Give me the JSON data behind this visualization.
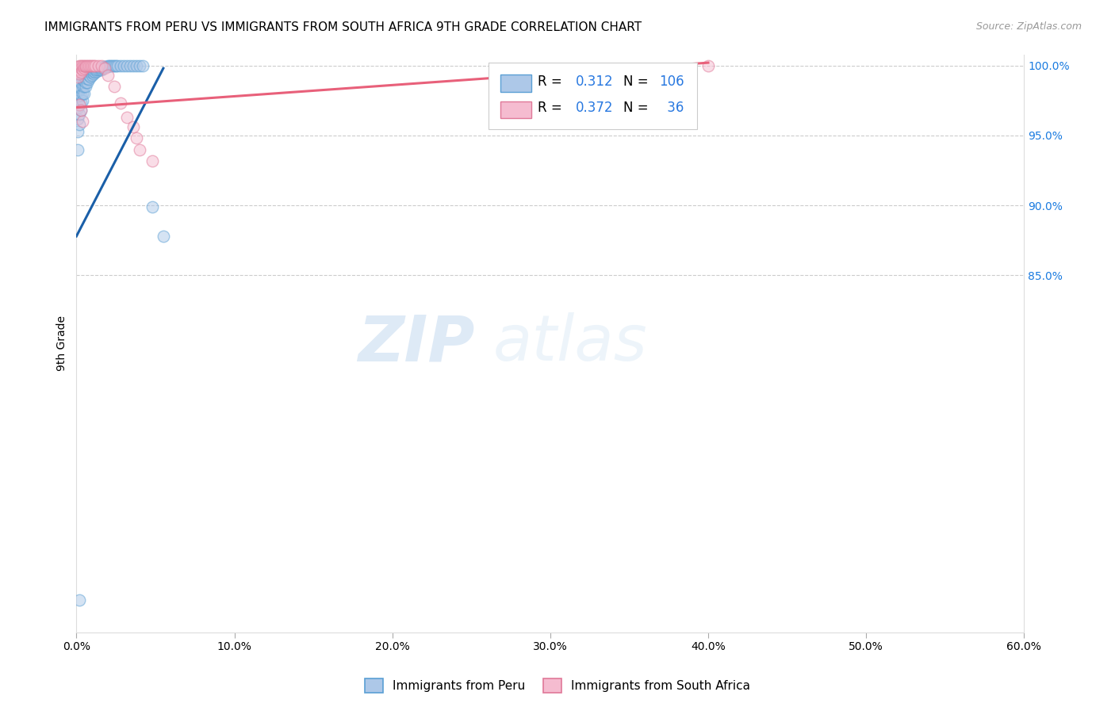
{
  "title": "IMMIGRANTS FROM PERU VS IMMIGRANTS FROM SOUTH AFRICA 9TH GRADE CORRELATION CHART",
  "source": "Source: ZipAtlas.com",
  "ylabel_left": "9th Grade",
  "xmin": 0.0,
  "xmax": 0.6,
  "ymin": 0.595,
  "ymax": 1.008,
  "right_yticks": [
    1.0,
    0.95,
    0.9,
    0.85
  ],
  "right_ytick_labels": [
    "100.0%",
    "95.0%",
    "90.0%",
    "85.0%"
  ],
  "peru_color": "#adc8e8",
  "peru_edge": "#5a9fd4",
  "sa_color": "#f5bcd0",
  "sa_edge": "#e07898",
  "trend_blue": "#1a5fa8",
  "trend_pink": "#e8607a",
  "legend_blue_label_r": "R = ",
  "legend_blue_r_val": "0.312",
  "legend_blue_n": "  N = ",
  "legend_blue_n_val": "106",
  "legend_pink_label_r": "R = ",
  "legend_pink_r_val": "0.372",
  "legend_pink_n": "  N = ",
  "legend_pink_n_val": " 36",
  "bottom_legend_peru": "Immigrants from Peru",
  "bottom_legend_sa": "Immigrants from South Africa",
  "watermark_zip": "ZIP",
  "watermark_atlas": "atlas",
  "peru_x": [
    0.001,
    0.001,
    0.001,
    0.001,
    0.001,
    0.002,
    0.002,
    0.002,
    0.002,
    0.002,
    0.003,
    0.003,
    0.003,
    0.003,
    0.003,
    0.004,
    0.004,
    0.004,
    0.004,
    0.005,
    0.005,
    0.005,
    0.005,
    0.006,
    0.006,
    0.006,
    0.006,
    0.007,
    0.007,
    0.007,
    0.008,
    0.008,
    0.008,
    0.009,
    0.009,
    0.01,
    0.01,
    0.01,
    0.011,
    0.011,
    0.012,
    0.012,
    0.013,
    0.013,
    0.014,
    0.015,
    0.015,
    0.016,
    0.016,
    0.017,
    0.017,
    0.018,
    0.019,
    0.02,
    0.02,
    0.021,
    0.022,
    0.023,
    0.024,
    0.025,
    0.026,
    0.028,
    0.03,
    0.032,
    0.034,
    0.036,
    0.038,
    0.04,
    0.042,
    0.048,
    0.055,
    0.002
  ],
  "peru_y": [
    0.94,
    0.953,
    0.962,
    0.97,
    0.975,
    0.958,
    0.965,
    0.972,
    0.978,
    0.982,
    0.968,
    0.974,
    0.979,
    0.984,
    0.988,
    0.975,
    0.98,
    0.985,
    0.99,
    0.98,
    0.985,
    0.989,
    0.992,
    0.985,
    0.988,
    0.991,
    0.994,
    0.988,
    0.991,
    0.994,
    0.99,
    0.993,
    0.995,
    0.992,
    0.995,
    0.993,
    0.995,
    0.997,
    0.994,
    0.996,
    0.995,
    0.997,
    0.996,
    0.997,
    0.997,
    0.997,
    0.998,
    0.997,
    0.998,
    0.998,
    0.999,
    0.999,
    0.999,
    0.999,
    1.0,
    1.0,
    1.0,
    1.0,
    1.0,
    1.0,
    1.0,
    1.0,
    1.0,
    1.0,
    1.0,
    1.0,
    1.0,
    1.0,
    1.0,
    0.899,
    0.878,
    0.618
  ],
  "sa_x": [
    0.001,
    0.001,
    0.001,
    0.002,
    0.002,
    0.002,
    0.003,
    0.003,
    0.003,
    0.004,
    0.004,
    0.005,
    0.005,
    0.006,
    0.006,
    0.007,
    0.008,
    0.009,
    0.01,
    0.011,
    0.012,
    0.014,
    0.016,
    0.018,
    0.02,
    0.024,
    0.028,
    0.032,
    0.036,
    0.038,
    0.04,
    0.048,
    0.4,
    0.002,
    0.003,
    0.004
  ],
  "sa_y": [
    0.992,
    0.996,
    0.999,
    0.994,
    0.997,
    1.0,
    0.995,
    0.998,
    1.0,
    0.997,
    1.0,
    0.998,
    1.0,
    0.999,
    1.0,
    1.0,
    1.0,
    1.0,
    1.0,
    1.0,
    1.0,
    1.0,
    1.0,
    0.998,
    0.993,
    0.985,
    0.973,
    0.963,
    0.956,
    0.948,
    0.94,
    0.932,
    1.0,
    0.972,
    0.968,
    0.96
  ],
  "blue_trend_x0": 0.0,
  "blue_trend_y0": 0.878,
  "blue_trend_x1": 0.055,
  "blue_trend_y1": 0.998,
  "pink_trend_x0": 0.0,
  "pink_trend_y0": 0.97,
  "pink_trend_x1": 0.4,
  "pink_trend_y1": 1.002,
  "marker_size": 110,
  "alpha": 0.5,
  "title_fontsize": 11,
  "source_fontsize": 9,
  "tick_fontsize": 10,
  "ylabel_fontsize": 10
}
